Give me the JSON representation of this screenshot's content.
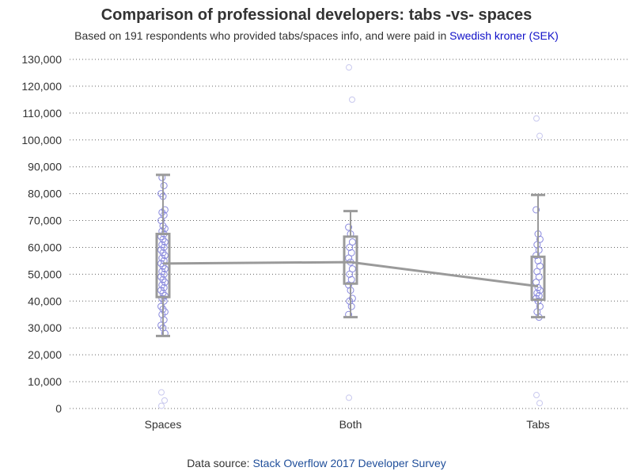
{
  "header": {
    "title": "Comparison of professional developers: tabs -vs- spaces",
    "subtitle_prefix": "Based on 191 respondents who provided tabs/spaces info, and were paid in ",
    "subtitle_link": "Swedish kroner (SEK)"
  },
  "footer": {
    "source_prefix": "Data source: ",
    "source_link": "Stack Overflow 2017 Developer Survey"
  },
  "colors": {
    "box": "#9a9a9a",
    "point": "#8888dd",
    "point_faint": "#c8c8ee",
    "grid": "#666666",
    "link": "#1010c8"
  },
  "chart_data": {
    "type": "box",
    "title": "Comparison of professional developers: tabs -vs- spaces",
    "xlabel": "",
    "ylabel": "",
    "categories": [
      "Spaces",
      "Both",
      "Tabs"
    ],
    "ylim": [
      0,
      130000
    ],
    "yticks": [
      0,
      10000,
      20000,
      30000,
      40000,
      50000,
      60000,
      70000,
      80000,
      90000,
      100000,
      110000,
      120000,
      130000
    ],
    "ytick_labels": [
      "0",
      "10,000",
      "20,000",
      "30,000",
      "40,000",
      "50,000",
      "60,000",
      "70,000",
      "80,000",
      "90,000",
      "100,000",
      "110,000",
      "120,000",
      "130,000"
    ],
    "grid": "horizontal dotted",
    "boxes": [
      {
        "category": "Spaces",
        "whisker_low": 27000,
        "q1": 41500,
        "median": 54000,
        "q3": 65000,
        "whisker_high": 87000
      },
      {
        "category": "Both",
        "whisker_low": 34000,
        "q1": 46500,
        "median": 54500,
        "q3": 64000,
        "whisker_high": 73500
      },
      {
        "category": "Tabs",
        "whisker_low": 34000,
        "q1": 40500,
        "median": 45500,
        "q3": 56500,
        "whisker_high": 79500
      }
    ],
    "median_line": [
      54000,
      54500,
      45500
    ],
    "points": [
      {
        "category": "Spaces",
        "values": [
          80000,
          79000,
          74000,
          73000,
          72000,
          70000,
          68000,
          67000,
          66000,
          65000,
          64000,
          63000,
          62000,
          61000,
          60000,
          59000,
          58000,
          57000,
          56000,
          55000,
          54000,
          53000,
          52000,
          51000,
          50000,
          49000,
          48000,
          47000,
          46000,
          45000,
          44000,
          43000,
          42000,
          41000,
          40000,
          38000,
          37000,
          36000,
          35000,
          33000,
          31000,
          30000,
          28000,
          86000,
          83000
        ]
      },
      {
        "category": "Both",
        "values": [
          67500,
          65000,
          62000,
          60000,
          58000,
          56000,
          54500,
          52000,
          50000,
          48000,
          46000,
          44000,
          41000,
          40000,
          38000,
          35000
        ]
      },
      {
        "category": "Tabs",
        "values": [
          74000,
          65000,
          63000,
          61000,
          59000,
          57000,
          55000,
          53000,
          51000,
          49000,
          47000,
          45000,
          44000,
          43000,
          42000,
          41000,
          40000,
          38000,
          36000,
          34000
        ]
      }
    ],
    "outliers": [
      {
        "category": "Spaces",
        "values": [
          6000,
          3000,
          1000
        ]
      },
      {
        "category": "Both",
        "values": [
          127000,
          115000,
          4000
        ]
      },
      {
        "category": "Tabs",
        "values": [
          108000,
          101500,
          5000,
          2000
        ]
      }
    ]
  }
}
